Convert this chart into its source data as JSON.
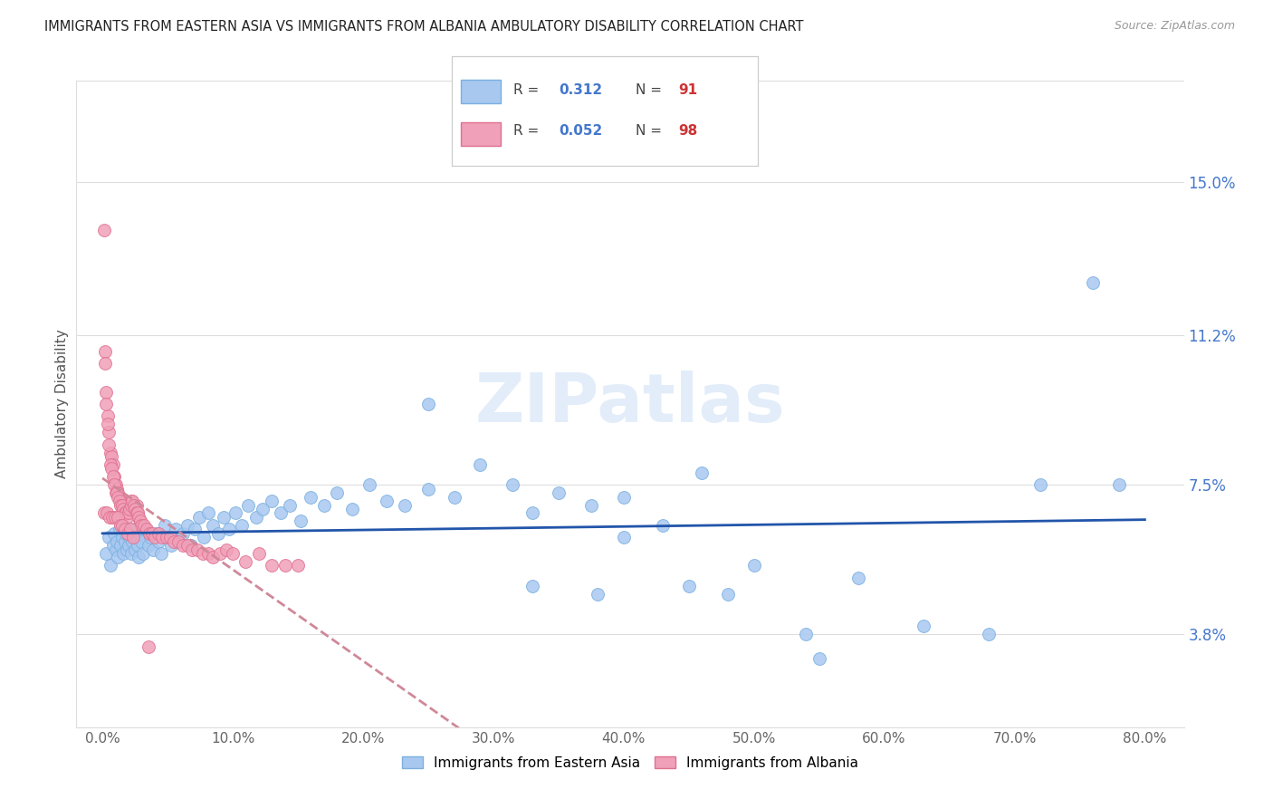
{
  "title": "IMMIGRANTS FROM EASTERN ASIA VS IMMIGRANTS FROM ALBANIA AMBULATORY DISABILITY CORRELATION CHART",
  "source": "Source: ZipAtlas.com",
  "xlabel_ticks": [
    0.0,
    10.0,
    20.0,
    30.0,
    40.0,
    50.0,
    60.0,
    70.0,
    80.0
  ],
  "ylabel_ticks": [
    3.8,
    7.5,
    11.2,
    15.0
  ],
  "ylabel": "Ambulatory Disability",
  "legend_labels": [
    "Immigrants from Eastern Asia",
    "Immigrants from Albania"
  ],
  "R_eastern": 0.312,
  "N_eastern": 91,
  "R_albania": 0.052,
  "N_albania": 98,
  "color_eastern": "#a8c8f0",
  "color_albania": "#f0a0b8",
  "trendline_eastern_color": "#2255aa",
  "trendline_albania_color": "#d08898",
  "watermark": "ZIPatlas",
  "eastern_asia_x": [
    0.3,
    0.5,
    0.6,
    0.8,
    0.9,
    1.0,
    1.1,
    1.2,
    1.3,
    1.4,
    1.5,
    1.6,
    1.7,
    1.8,
    1.9,
    2.0,
    2.1,
    2.2,
    2.3,
    2.4,
    2.5,
    2.6,
    2.7,
    2.8,
    2.9,
    3.0,
    3.1,
    3.3,
    3.5,
    3.7,
    3.9,
    4.1,
    4.3,
    4.5,
    4.8,
    5.0,
    5.3,
    5.6,
    5.9,
    6.2,
    6.5,
    6.8,
    7.1,
    7.4,
    7.8,
    8.1,
    8.5,
    8.9,
    9.3,
    9.7,
    10.2,
    10.7,
    11.2,
    11.8,
    12.3,
    13.0,
    13.7,
    14.4,
    15.2,
    16.0,
    17.0,
    18.0,
    19.2,
    20.5,
    21.8,
    23.2,
    25.0,
    27.0,
    29.0,
    31.5,
    33.0,
    35.0,
    37.5,
    40.0,
    43.0,
    46.0,
    50.0,
    54.0,
    58.0,
    63.0,
    68.0,
    72.0,
    76.0,
    40.0,
    45.0,
    48.0,
    33.0,
    38.0,
    25.0,
    55.0,
    78.0
  ],
  "eastern_asia_y": [
    5.8,
    6.2,
    5.5,
    6.0,
    6.3,
    5.9,
    6.1,
    5.7,
    6.4,
    6.0,
    6.2,
    5.8,
    6.1,
    6.3,
    5.9,
    6.0,
    6.2,
    5.8,
    6.1,
    6.4,
    5.9,
    6.2,
    6.0,
    5.7,
    6.3,
    6.1,
    5.8,
    6.4,
    6.0,
    6.2,
    5.9,
    6.3,
    6.1,
    5.8,
    6.5,
    6.2,
    6.0,
    6.4,
    6.1,
    6.3,
    6.5,
    6.0,
    6.4,
    6.7,
    6.2,
    6.8,
    6.5,
    6.3,
    6.7,
    6.4,
    6.8,
    6.5,
    7.0,
    6.7,
    6.9,
    7.1,
    6.8,
    7.0,
    6.6,
    7.2,
    7.0,
    7.3,
    6.9,
    7.5,
    7.1,
    7.0,
    7.4,
    7.2,
    8.0,
    7.5,
    6.8,
    7.3,
    7.0,
    7.2,
    6.5,
    7.8,
    5.5,
    3.8,
    5.2,
    4.0,
    3.8,
    7.5,
    12.5,
    6.2,
    5.0,
    4.8,
    5.0,
    4.8,
    9.5,
    3.2,
    7.5
  ],
  "albania_x": [
    0.1,
    0.2,
    0.3,
    0.4,
    0.5,
    0.6,
    0.7,
    0.8,
    0.9,
    1.0,
    1.1,
    1.2,
    1.3,
    1.4,
    1.5,
    1.6,
    1.7,
    1.8,
    1.9,
    2.0,
    2.1,
    2.2,
    2.3,
    2.4,
    2.5,
    2.6,
    2.7,
    2.8,
    2.9,
    3.0,
    0.2,
    0.3,
    0.4,
    0.5,
    0.6,
    0.7,
    0.8,
    0.9,
    1.0,
    1.1,
    1.2,
    1.3,
    1.4,
    1.5,
    1.6,
    1.7,
    1.8,
    1.9,
    2.0,
    2.1,
    2.2,
    2.3,
    2.4,
    2.5,
    2.6,
    2.7,
    2.8,
    2.9,
    3.0,
    3.2,
    3.4,
    3.6,
    3.8,
    4.0,
    4.3,
    4.6,
    4.9,
    5.2,
    5.5,
    5.8,
    6.2,
    6.5,
    6.9,
    7.3,
    7.7,
    8.1,
    8.5,
    9.0,
    9.5,
    10.0,
    11.0,
    12.0,
    13.0,
    14.0,
    15.0,
    0.15,
    0.35,
    0.55,
    0.75,
    0.95,
    1.15,
    1.35,
    1.55,
    1.75,
    1.95,
    2.15,
    2.35,
    3.5
  ],
  "albania_y": [
    13.8,
    10.8,
    9.8,
    9.2,
    8.8,
    8.3,
    8.2,
    8.0,
    7.7,
    7.5,
    7.4,
    7.3,
    7.2,
    7.1,
    7.0,
    7.0,
    6.9,
    6.9,
    6.8,
    6.9,
    7.0,
    7.1,
    7.0,
    6.9,
    6.8,
    7.0,
    6.8,
    6.7,
    6.6,
    6.5,
    10.5,
    9.5,
    9.0,
    8.5,
    8.0,
    7.9,
    7.7,
    7.5,
    7.3,
    7.3,
    7.2,
    7.1,
    7.0,
    7.0,
    6.9,
    6.8,
    6.8,
    6.7,
    6.8,
    6.9,
    7.0,
    7.1,
    7.0,
    6.9,
    6.8,
    6.8,
    6.7,
    6.6,
    6.5,
    6.5,
    6.4,
    6.3,
    6.3,
    6.2,
    6.3,
    6.2,
    6.2,
    6.2,
    6.1,
    6.1,
    6.0,
    6.0,
    5.9,
    5.9,
    5.8,
    5.8,
    5.7,
    5.8,
    5.9,
    5.8,
    5.6,
    5.8,
    5.5,
    5.5,
    5.5,
    6.8,
    6.8,
    6.7,
    6.7,
    6.7,
    6.7,
    6.5,
    6.5,
    6.4,
    6.3,
    6.4,
    6.2,
    3.5
  ]
}
